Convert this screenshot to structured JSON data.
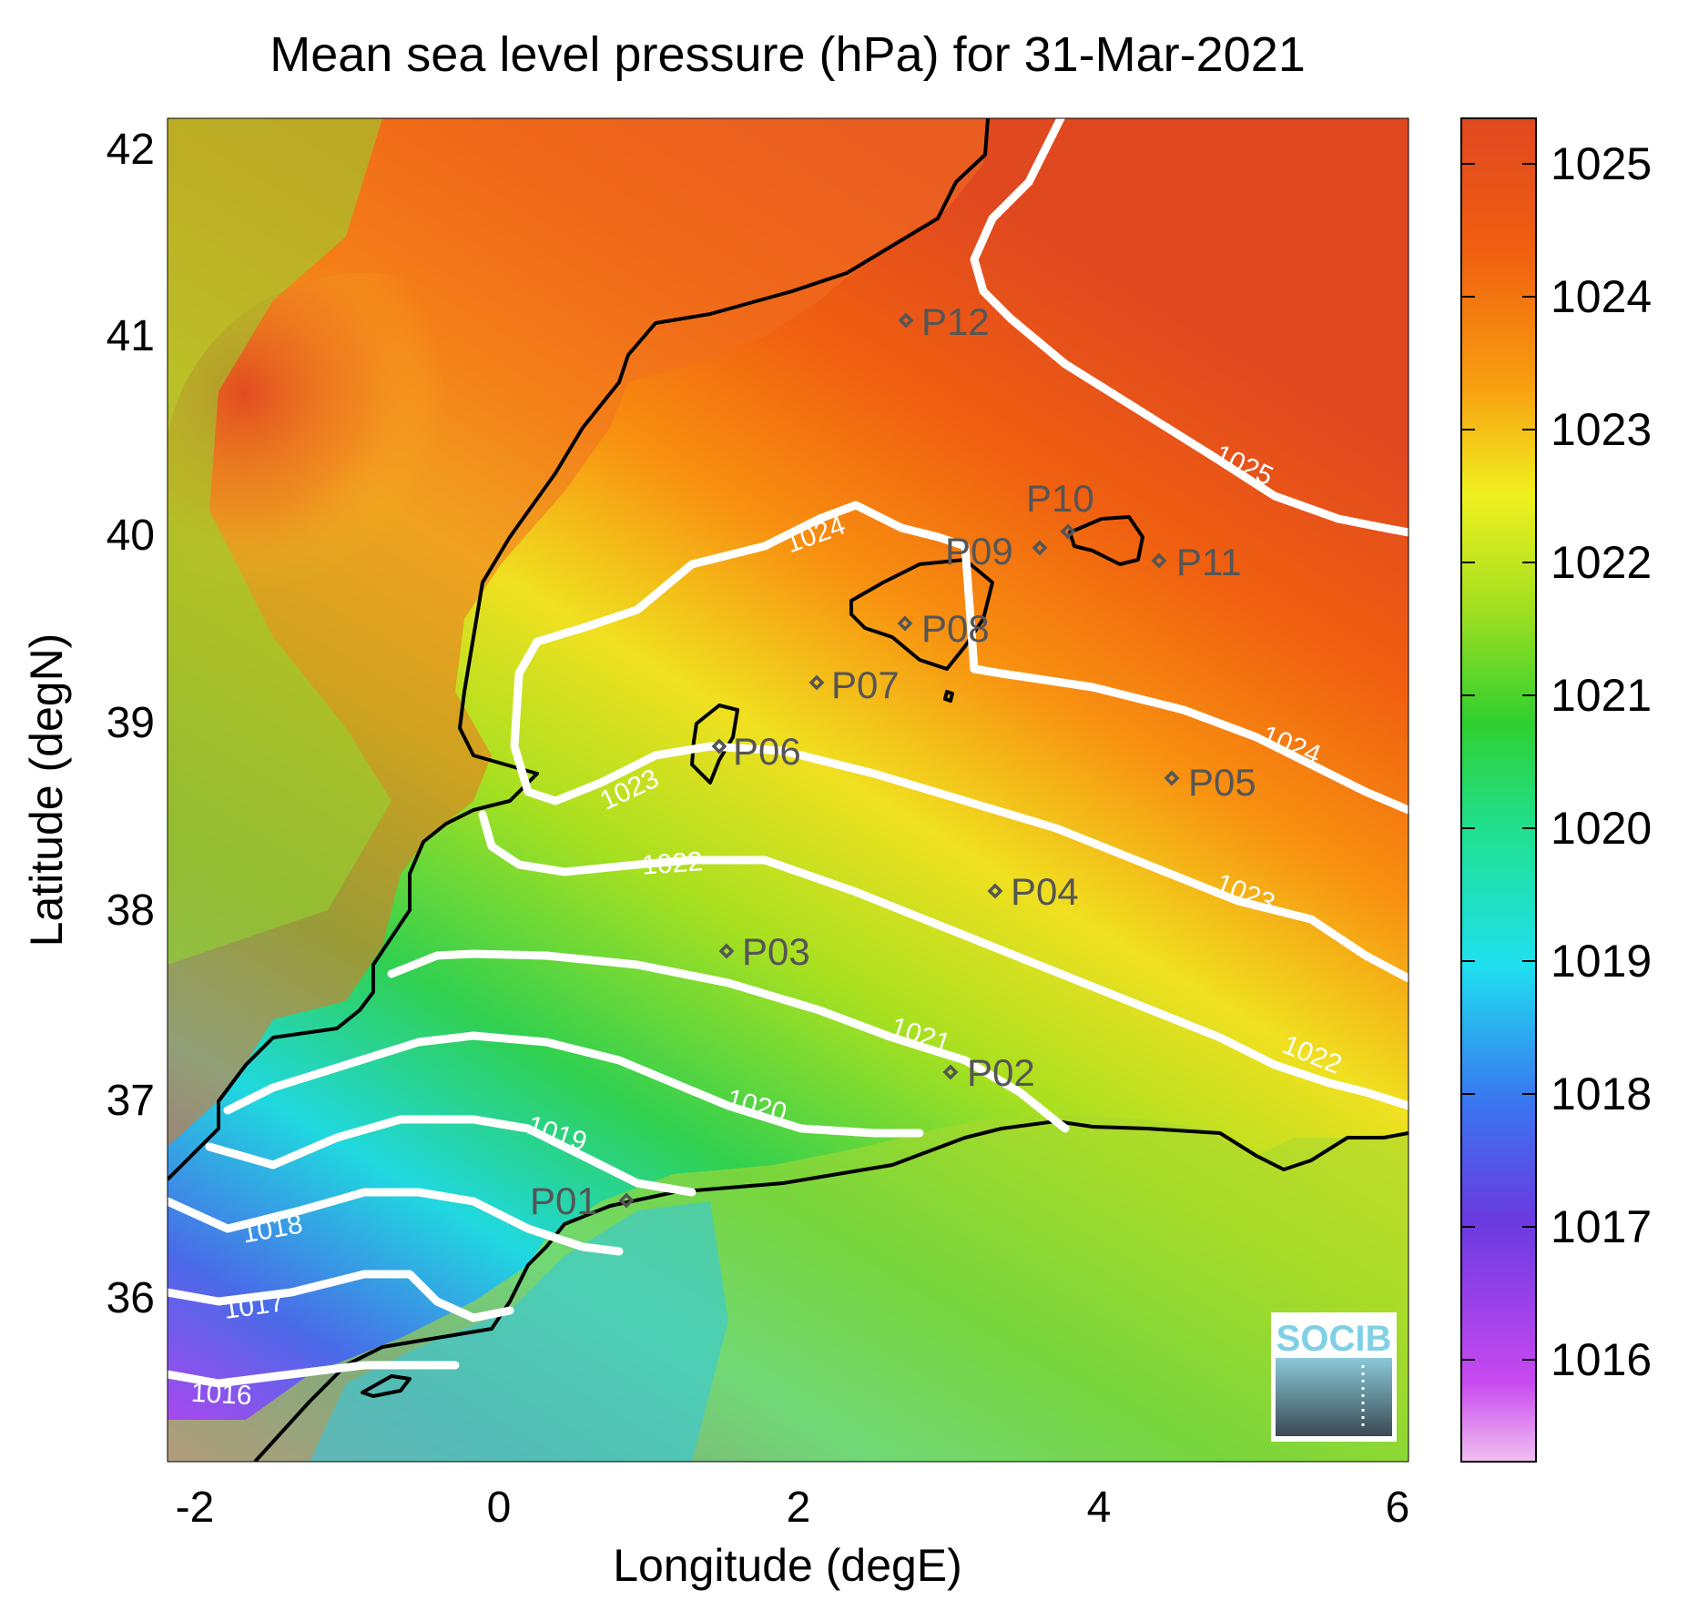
{
  "title": "Mean sea level pressure (hPa) for 31-Mar-2021",
  "xlabel": "Longitude (degE)",
  "ylabel": "Latitude (degN)",
  "x_ticks": [
    "-2",
    "0",
    "2",
    "4",
    "6"
  ],
  "y_ticks": [
    "42",
    "41",
    "40",
    "39",
    "38",
    "37",
    "36"
  ],
  "colorbar_ticks": [
    "1025",
    "1024",
    "1023",
    "1022",
    "1021",
    "1020",
    "1019",
    "1018",
    "1017",
    "1016"
  ],
  "contour_labels": {
    "c1016": "1016",
    "c1017": "1017",
    "c1018": "1018",
    "c1019": "1019",
    "c1020": "1020",
    "c1021": "1021",
    "c1022a": "1022",
    "c1022b": "1022",
    "c1023a": "1023",
    "c1023b": "1023",
    "c1024a": "1024",
    "c1024b": "1024",
    "c1025": "1025"
  },
  "points": {
    "P01": "P01",
    "P02": "P02",
    "P03": "P03",
    "P04": "P04",
    "P05": "P05",
    "P06": "P06",
    "P07": "P07",
    "P08": "P08",
    "P09": "P09",
    "P10": "P10",
    "P11": "P11",
    "P12": "P12"
  },
  "logo": {
    "text": "SOCIB"
  },
  "chart_data": {
    "type": "heatmap",
    "variable": "Mean sea level pressure",
    "units": "hPa",
    "date": "31-Mar-2021",
    "xlim": [
      -2.2,
      6.1
    ],
    "ylim": [
      35.2,
      42.2
    ],
    "colorbar_range": [
      1015.2,
      1025.4
    ],
    "colormap": [
      "#f0b8f0",
      "#c040f0",
      "#6040e0",
      "#3a7ff0",
      "#20d8f0",
      "#20e0a0",
      "#30d030",
      "#a0e020",
      "#f0f020",
      "#f8a010",
      "#f06010",
      "#e04820"
    ],
    "contour_levels": [
      1016,
      1017,
      1018,
      1019,
      1020,
      1021,
      1022,
      1023,
      1024,
      1025
    ],
    "stations": [
      {
        "name": "P01",
        "lon": 0.85,
        "lat": 36.5
      },
      {
        "name": "P02",
        "lon": 3.0,
        "lat": 37.15
      },
      {
        "name": "P03",
        "lon": 1.5,
        "lat": 37.8
      },
      {
        "name": "P04",
        "lon": 3.3,
        "lat": 38.1
      },
      {
        "name": "P05",
        "lon": 4.5,
        "lat": 38.7
      },
      {
        "name": "P06",
        "lon": 1.45,
        "lat": 38.85
      },
      {
        "name": "P07",
        "lon": 2.1,
        "lat": 39.2
      },
      {
        "name": "P08",
        "lon": 2.7,
        "lat": 39.5
      },
      {
        "name": "P09",
        "lon": 3.6,
        "lat": 39.9
      },
      {
        "name": "P10",
        "lon": 3.8,
        "lat": 40.0
      },
      {
        "name": "P11",
        "lon": 4.4,
        "lat": 39.85
      },
      {
        "name": "P12",
        "lon": 2.7,
        "lat": 41.1
      }
    ]
  }
}
